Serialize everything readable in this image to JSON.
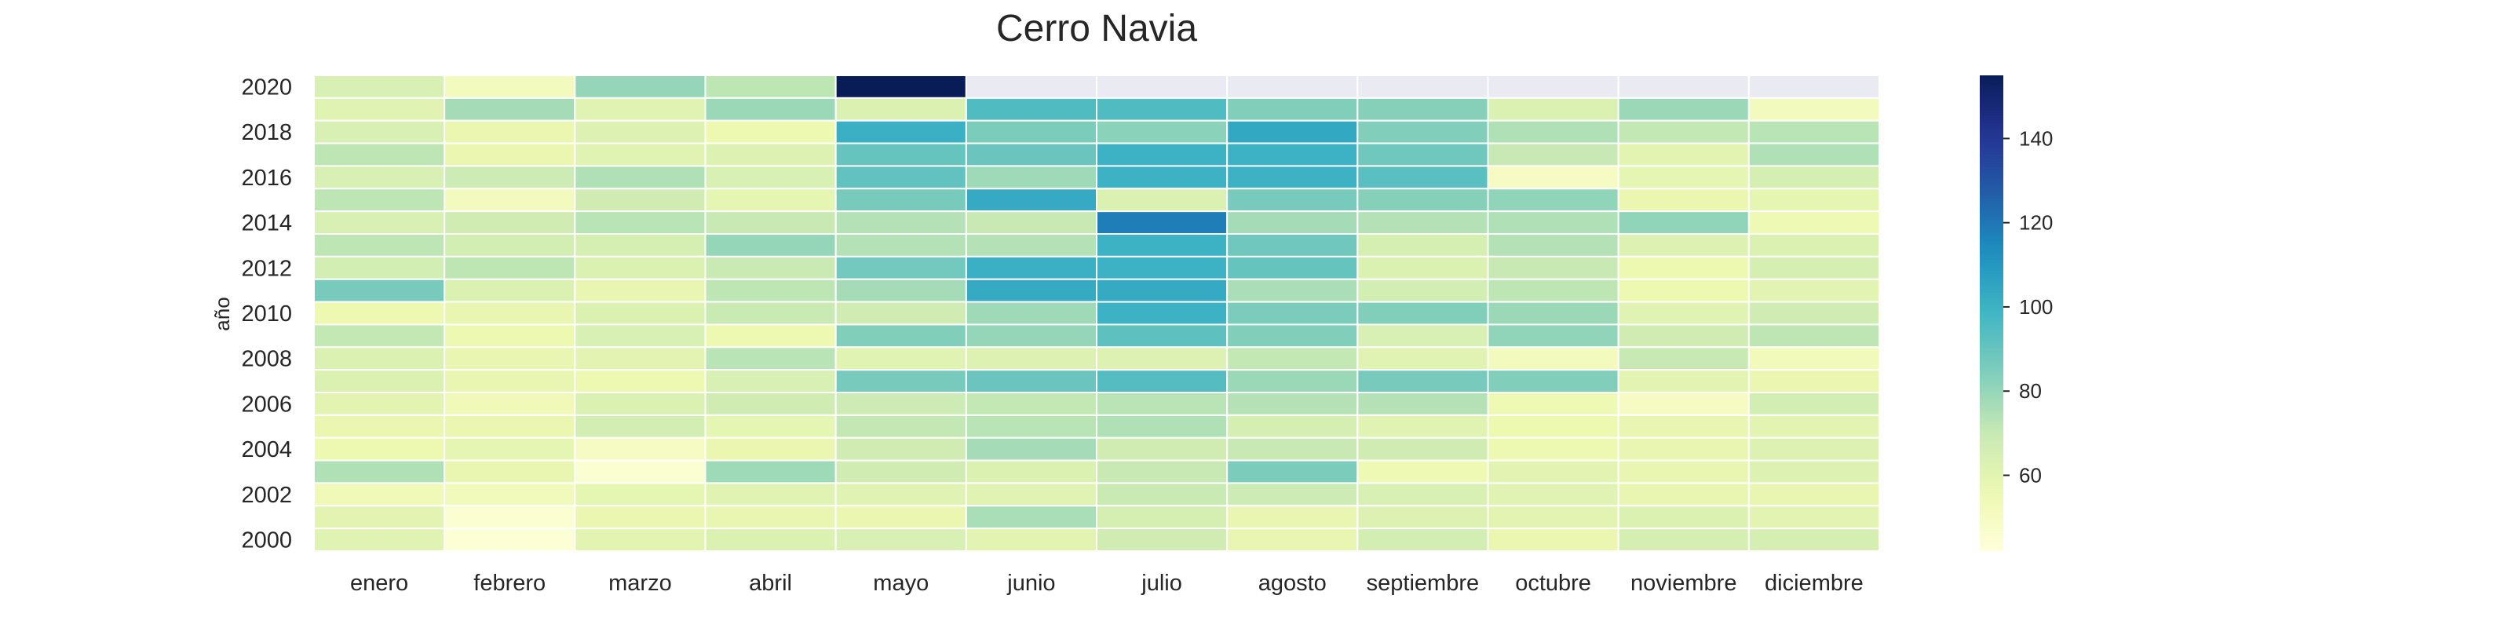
{
  "chart_data": {
    "type": "heatmap",
    "title": "Cerro Navia",
    "ylabel": "año",
    "xlabel": "",
    "x_categories": [
      "enero",
      "febrero",
      "marzo",
      "abril",
      "mayo",
      "junio",
      "julio",
      "agosto",
      "septiembre",
      "octubre",
      "noviembre",
      "diciembre"
    ],
    "y_categories": [
      2020,
      2019,
      2018,
      2017,
      2016,
      2015,
      2014,
      2013,
      2012,
      2011,
      2010,
      2009,
      2008,
      2007,
      2006,
      2005,
      2004,
      2003,
      2002,
      2001,
      2000
    ],
    "y_tick_labels": [
      "2020",
      "2018",
      "2016",
      "2014",
      "2012",
      "2010",
      "2008",
      "2006",
      "2004",
      "2002",
      "2000"
    ],
    "colorbar": {
      "min": 42,
      "max": 155,
      "ticks": [
        60,
        80,
        100,
        120,
        140
      ],
      "colormap": "YlGnBu"
    },
    "values": [
      [
        64,
        52,
        80,
        72,
        155,
        null,
        null,
        null,
        null,
        null,
        null,
        null
      ],
      [
        61,
        77,
        61,
        79,
        63,
        95,
        95,
        84,
        83,
        63,
        79,
        52
      ],
      [
        64,
        57,
        62,
        56,
        101,
        85,
        82,
        104,
        84,
        75,
        71,
        73
      ],
      [
        72,
        57,
        61,
        62,
        90,
        89,
        100,
        100,
        88,
        70,
        60,
        75
      ],
      [
        64,
        68,
        75,
        64,
        91,
        78,
        100,
        100,
        93,
        50,
        59,
        65
      ],
      [
        72,
        52,
        67,
        59,
        86,
        103,
        63,
        86,
        83,
        81,
        57,
        59
      ],
      [
        64,
        67,
        73,
        70,
        74,
        70,
        118,
        77,
        74,
        75,
        81,
        55
      ],
      [
        72,
        66,
        65,
        80,
        74,
        74,
        100,
        88,
        65,
        74,
        62,
        63
      ],
      [
        66,
        72,
        63,
        69,
        87,
        101,
        100,
        90,
        63,
        70,
        56,
        65
      ],
      [
        86,
        63,
        58,
        72,
        77,
        103,
        103,
        76,
        66,
        72,
        56,
        60
      ],
      [
        56,
        58,
        63,
        69,
        67,
        78,
        100,
        85,
        84,
        79,
        61,
        67
      ],
      [
        71,
        56,
        64,
        56,
        84,
        80,
        92,
        84,
        64,
        81,
        67,
        72
      ],
      [
        63,
        58,
        60,
        73,
        61,
        62,
        62,
        71,
        61,
        52,
        70,
        53
      ],
      [
        63,
        58,
        56,
        64,
        86,
        89,
        94,
        79,
        86,
        84,
        60,
        57
      ],
      [
        60,
        54,
        63,
        67,
        68,
        71,
        73,
        74,
        74,
        55,
        50,
        66
      ],
      [
        57,
        57,
        66,
        59,
        71,
        73,
        75,
        65,
        61,
        56,
        58,
        60
      ],
      [
        56,
        59,
        50,
        57,
        67,
        77,
        67,
        70,
        67,
        56,
        58,
        62
      ],
      [
        75,
        58,
        45,
        78,
        67,
        63,
        70,
        85,
        55,
        60,
        58,
        62
      ],
      [
        54,
        53,
        59,
        61,
        61,
        61,
        69,
        68,
        64,
        61,
        58,
        58
      ],
      [
        60,
        45,
        57,
        58,
        57,
        76,
        65,
        58,
        62,
        60,
        63,
        60
      ],
      [
        61,
        44,
        60,
        63,
        64,
        60,
        67,
        58,
        66,
        57,
        65,
        65
      ]
    ]
  }
}
